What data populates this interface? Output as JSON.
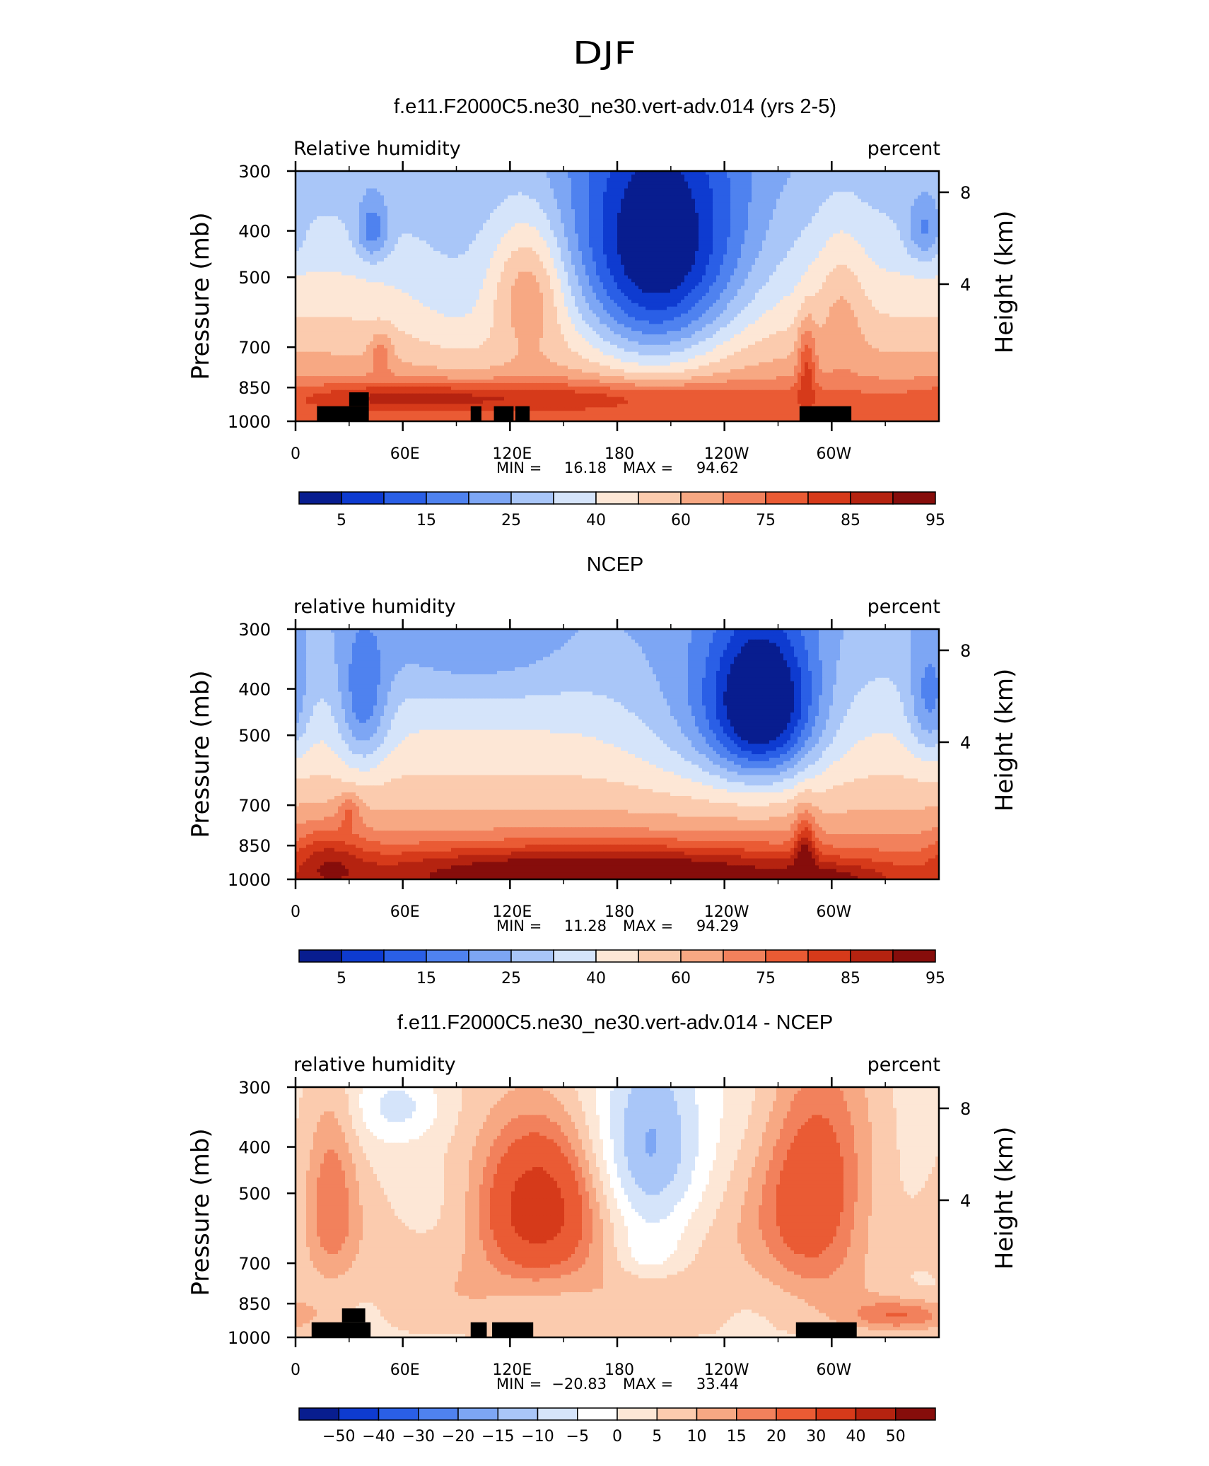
{
  "figure": {
    "title": "DJF"
  },
  "chart_data": [
    {
      "type": "heatmap",
      "title": "f.e11.F2000C5.ne30_ne30.vert-adv.014 (yrs 2-5)",
      "left_label": "Relative humidity",
      "right_label": "percent",
      "ylabel": "Pressure (mb)",
      "ylabel_right": "Height (km)",
      "x_ticks": [
        "0",
        "60E",
        "120E",
        "180",
        "120W",
        "60W"
      ],
      "y_ticks": [
        "300",
        "400",
        "500",
        "700",
        "850",
        "1000"
      ],
      "height_ticks": [
        "8",
        "4"
      ],
      "ylim": [
        1000,
        300
      ],
      "stats": {
        "min_label": "MIN =",
        "min": "16.18",
        "max_label": "MAX =",
        "max": "94.62"
      },
      "colorbar": {
        "labels": [
          "5",
          "15",
          "25",
          "40",
          "60",
          "75",
          "85",
          "95"
        ],
        "colors": [
          "#081d8f",
          "#0e3bd0",
          "#2a5fe6",
          "#4f82ef",
          "#7da6f4",
          "#a9c6f8",
          "#d5e4fa",
          "#fde7d6",
          "#fbcbae",
          "#f7a883",
          "#f2815c",
          "#ea5b34",
          "#d63a1a",
          "#b52310",
          "#860d0b"
        ]
      },
      "humps": [
        {
          "lon": 203,
          "p": 430,
          "sx": 48,
          "sy": 230,
          "a": -42
        },
        {
          "lon": 200,
          "p": 660,
          "sx": 38,
          "sy": 210,
          "a": -14
        },
        {
          "lon": 43,
          "p": 400,
          "sx": 9,
          "sy": 60,
          "a": -18
        },
        {
          "lon": 352,
          "p": 400,
          "sx": 10,
          "sy": 60,
          "a": -16
        },
        {
          "lon": 130,
          "p": 520,
          "sx": 22,
          "sy": 170,
          "a": 22
        },
        {
          "lon": 160,
          "p": 890,
          "sx": 140,
          "sy": 70,
          "a": 14
        },
        {
          "lon": 60,
          "p": 890,
          "sx": 65,
          "sy": 60,
          "a": 12
        },
        {
          "lon": 286,
          "p": 760,
          "sx": 5,
          "sy": 160,
          "a": 18
        },
        {
          "lon": 305,
          "p": 560,
          "sx": 14,
          "sy": 200,
          "a": 10
        },
        {
          "lon": 48,
          "p": 720,
          "sx": 6,
          "sy": 70,
          "a": 12
        },
        {
          "lon": 100,
          "p": 600,
          "sx": 40,
          "sy": 250,
          "a": -8
        }
      ],
      "topography": [
        {
          "lon0": 12,
          "lon1": 41,
          "p0": 1000,
          "p1": 930
        },
        {
          "lon0": 30,
          "lon1": 41,
          "p0": 930,
          "p1": 870
        },
        {
          "lon0": 98,
          "lon1": 104,
          "p0": 1000,
          "p1": 930
        },
        {
          "lon0": 111,
          "lon1": 122,
          "p0": 1000,
          "p1": 930
        },
        {
          "lon0": 123,
          "lon1": 131,
          "p0": 1000,
          "p1": 930
        },
        {
          "lon0": 282,
          "lon1": 311,
          "p0": 1000,
          "p1": 930
        }
      ]
    },
    {
      "type": "heatmap",
      "title": "NCEP",
      "left_label": "relative humidity",
      "right_label": "percent",
      "ylabel": "Pressure (mb)",
      "ylabel_right": "Height (km)",
      "x_ticks": [
        "0",
        "60E",
        "120E",
        "180",
        "120W",
        "60W"
      ],
      "y_ticks": [
        "300",
        "400",
        "500",
        "700",
        "850",
        "1000"
      ],
      "height_ticks": [
        "8",
        "4"
      ],
      "ylim": [
        1000,
        300
      ],
      "stats": {
        "min_label": "MIN =",
        "min": "11.28",
        "max_label": "MAX =",
        "max": "94.29"
      },
      "colorbar": {
        "labels": [
          "5",
          "15",
          "25",
          "40",
          "60",
          "75",
          "85",
          "95"
        ],
        "colors": [
          "#081d8f",
          "#0e3bd0",
          "#2a5fe6",
          "#4f82ef",
          "#7da6f4",
          "#a9c6f8",
          "#d5e4fa",
          "#fde7d6",
          "#fbcbae",
          "#f7a883",
          "#f2815c",
          "#ea5b34",
          "#d63a1a",
          "#b52310",
          "#860d0b"
        ]
      },
      "humps": [
        {
          "lon": 262,
          "p": 440,
          "sx": 30,
          "sy": 170,
          "a": -48
        },
        {
          "lon": 225,
          "p": 460,
          "sx": 40,
          "sy": 200,
          "a": -10
        },
        {
          "lon": 38,
          "p": 440,
          "sx": 14,
          "sy": 140,
          "a": -20
        },
        {
          "lon": 355,
          "p": 430,
          "sx": 12,
          "sy": 120,
          "a": -18
        },
        {
          "lon": 100,
          "p": 340,
          "sx": 60,
          "sy": 80,
          "a": -8
        },
        {
          "lon": 170,
          "p": 960,
          "sx": 140,
          "sy": 120,
          "a": 30
        },
        {
          "lon": 18,
          "p": 900,
          "sx": 20,
          "sy": 150,
          "a": 14
        },
        {
          "lon": 285,
          "p": 860,
          "sx": 6,
          "sy": 150,
          "a": 20
        },
        {
          "lon": 300,
          "p": 990,
          "sx": 30,
          "sy": 60,
          "a": 10
        },
        {
          "lon": 30,
          "p": 720,
          "sx": 6,
          "sy": 60,
          "a": 12
        }
      ],
      "topography": []
    },
    {
      "type": "heatmap",
      "title": "f.e11.F2000C5.ne30_ne30.vert-adv.014 - NCEP",
      "left_label": "relative humidity",
      "right_label": "percent",
      "ylabel": "Pressure (mb)",
      "ylabel_right": "Height (km)",
      "x_ticks": [
        "0",
        "60E",
        "120E",
        "180",
        "120W",
        "60W"
      ],
      "y_ticks": [
        "300",
        "400",
        "500",
        "700",
        "850",
        "1000"
      ],
      "height_ticks": [
        "8",
        "4"
      ],
      "ylim": [
        1000,
        300
      ],
      "stats": {
        "min_label": "MIN =",
        "min": "−20.83",
        "max_label": "MAX =",
        "max": "33.44"
      },
      "colorbar": {
        "labels": [
          "−50",
          "−40",
          "−30",
          "−20",
          "−15",
          "−10",
          "−5",
          "0",
          "5",
          "10",
          "15",
          "20",
          "30",
          "40",
          "50"
        ],
        "colors": [
          "#081d8f",
          "#0e3bd0",
          "#2a5fe6",
          "#4f82ef",
          "#7da6f4",
          "#a9c6f8",
          "#d5e4fa",
          "#ffffff",
          "#fde7d6",
          "#fbcbae",
          "#f7a883",
          "#f2815c",
          "#ea5b34",
          "#d63a1a",
          "#b52310",
          "#860d0b"
        ]
      },
      "humps": [
        {
          "lon": 198,
          "p": 380,
          "sx": 30,
          "sy": 200,
          "a": -20
        },
        {
          "lon": 198,
          "p": 680,
          "sx": 20,
          "sy": 90,
          "a": -8
        },
        {
          "lon": 60,
          "p": 330,
          "sx": 25,
          "sy": 60,
          "a": -10
        },
        {
          "lon": 135,
          "p": 520,
          "sx": 32,
          "sy": 200,
          "a": 30
        },
        {
          "lon": 290,
          "p": 500,
          "sx": 30,
          "sy": 250,
          "a": 24
        },
        {
          "lon": 20,
          "p": 500,
          "sx": 15,
          "sy": 250,
          "a": 14
        },
        {
          "lon": 340,
          "p": 900,
          "sx": 30,
          "sy": 70,
          "a": 16
        },
        {
          "lon": 160,
          "p": 760,
          "sx": 160,
          "sy": 240,
          "a": 6
        }
      ],
      "topography": [
        {
          "lon0": 9,
          "lon1": 42,
          "p0": 1000,
          "p1": 930
        },
        {
          "lon0": 26,
          "lon1": 39,
          "p0": 930,
          "p1": 870
        },
        {
          "lon0": 98,
          "lon1": 107,
          "p0": 1000,
          "p1": 930
        },
        {
          "lon0": 110,
          "lon1": 133,
          "p0": 1000,
          "p1": 930
        },
        {
          "lon0": 280,
          "lon1": 314,
          "p0": 1000,
          "p1": 930
        }
      ]
    }
  ]
}
